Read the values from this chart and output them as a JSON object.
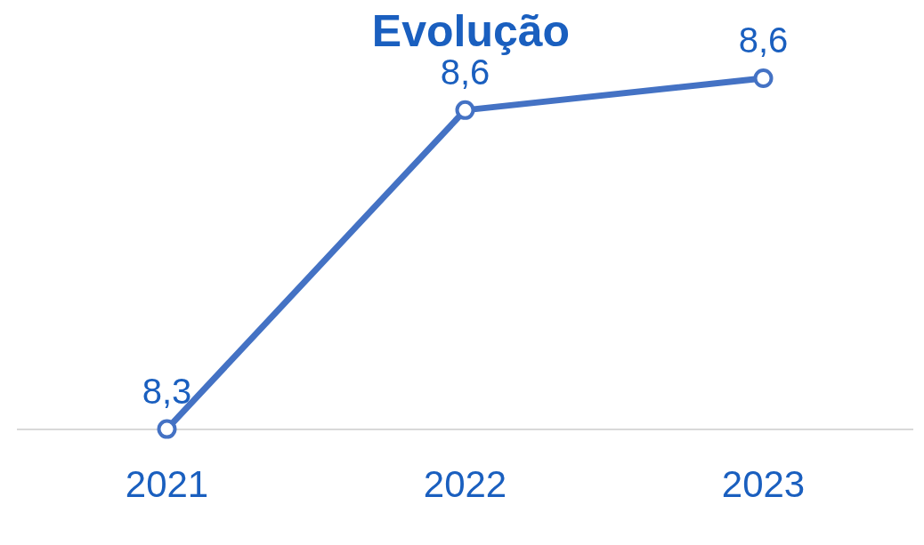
{
  "chart_data": {
    "type": "line",
    "title": "Evolução",
    "categories": [
      "2021",
      "2022",
      "2023"
    ],
    "series": [
      {
        "color": "#4472c4",
        "values": [
          8.3,
          8.6,
          8.63
        ],
        "value_labels": [
          "8,3",
          "8,6",
          "8,6"
        ]
      }
    ],
    "tick_labels": "x",
    "grid": false,
    "legend": false,
    "marker": "circle",
    "line_style": "solid"
  }
}
